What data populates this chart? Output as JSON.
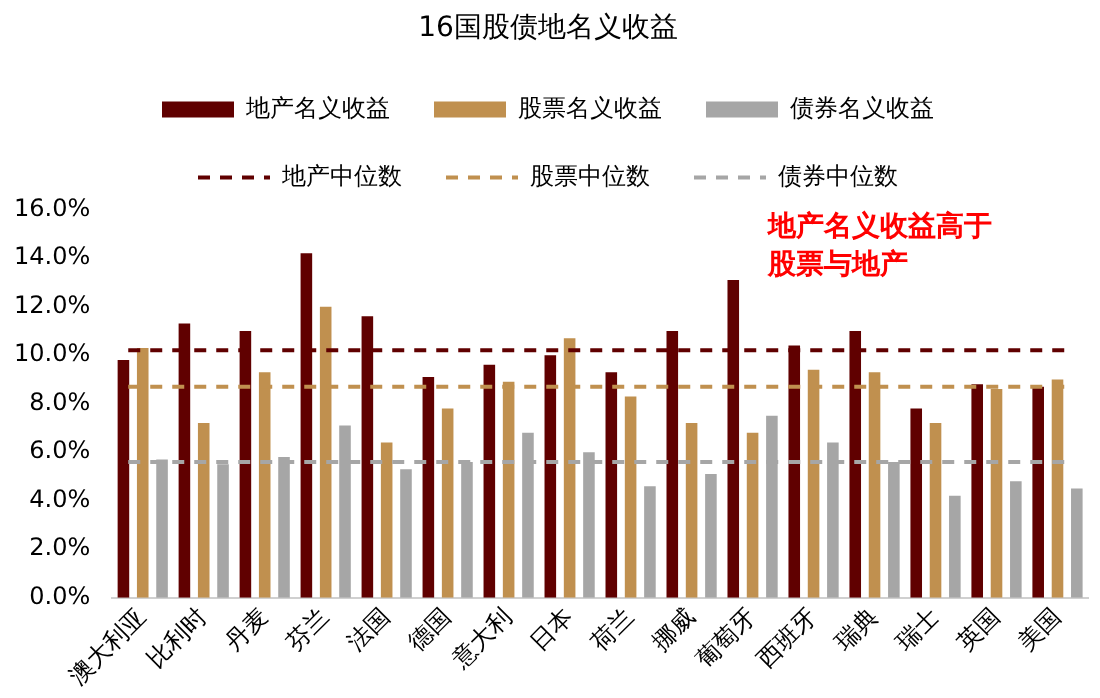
{
  "chart_data": {
    "type": "bar",
    "title": "16国股债地名义收益",
    "categories": [
      "澳大利亚",
      "比利时",
      "丹麦",
      "芬兰",
      "法国",
      "德国",
      "意大利",
      "日本",
      "荷兰",
      "挪威",
      "葡萄牙",
      "西班牙",
      "瑞典",
      "瑞士",
      "英国",
      "美国"
    ],
    "series": [
      {
        "name": "地产名义收益",
        "color": "#600000",
        "values": [
          9.8,
          11.3,
          11.0,
          14.2,
          11.6,
          9.1,
          9.6,
          10.0,
          9.3,
          11.0,
          13.1,
          10.4,
          11.0,
          7.8,
          8.8,
          8.7
        ]
      },
      {
        "name": "股票名义收益",
        "color": "#c0904f",
        "values": [
          10.3,
          7.2,
          9.3,
          12.0,
          6.4,
          7.8,
          8.9,
          10.7,
          8.3,
          7.2,
          6.8,
          9.4,
          9.3,
          7.2,
          8.6,
          9.0
        ]
      },
      {
        "name": "债券名义收益",
        "color": "#a6a6a6",
        "values": [
          5.7,
          5.5,
          5.8,
          7.1,
          5.3,
          5.6,
          6.8,
          6.0,
          4.6,
          5.1,
          7.5,
          6.4,
          5.6,
          4.2,
          4.8,
          4.5
        ]
      }
    ],
    "ylim": [
      0,
      16
    ],
    "yticks": [
      {
        "value": 0,
        "label": "0.0%"
      },
      {
        "value": 2,
        "label": "2.0%"
      },
      {
        "value": 4,
        "label": "4.0%"
      },
      {
        "value": 6,
        "label": "6.0%"
      },
      {
        "value": 8,
        "label": "8.0%"
      },
      {
        "value": 10,
        "label": "10.0%"
      },
      {
        "value": 12,
        "label": "12.0%"
      },
      {
        "value": 14,
        "label": "14.0%"
      },
      {
        "value": 16,
        "label": "16.0%"
      }
    ],
    "ref_lines": [
      {
        "axis": "y",
        "value": 10.2,
        "label": "地产中位数",
        "color": "#600000",
        "line_style": "dashed"
      },
      {
        "axis": "y",
        "value": 8.7,
        "label": "股票中位数",
        "color": "#c0904f",
        "line_style": "dashed"
      },
      {
        "axis": "y",
        "value": 5.6,
        "label": "债券中位数",
        "color": "#a6a6a6",
        "line_style": "dashed"
      }
    ],
    "annotations": [
      "地产名义收益高于",
      "股票与地产"
    ],
    "legend": "top",
    "grid": false
  }
}
